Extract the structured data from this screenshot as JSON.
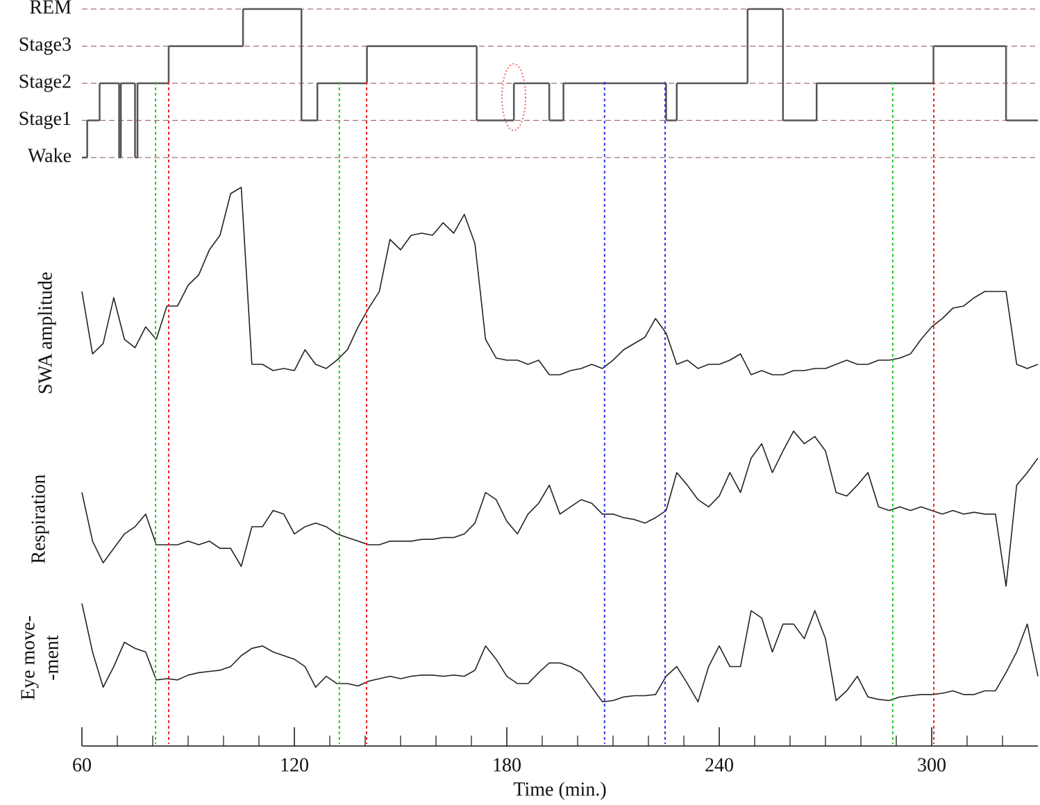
{
  "chart_data": [
    {
      "type": "step",
      "x": [
        60,
        61.5,
        65,
        70.5,
        71,
        75,
        75.7,
        84.5,
        105.5,
        122,
        126.5,
        140.5,
        171.5,
        182,
        192,
        196,
        225,
        228,
        248,
        258,
        267.5,
        300.5,
        321
      ],
      "values": [
        0,
        1,
        2,
        0,
        2,
        0,
        2,
        3,
        4,
        1,
        2,
        3,
        1,
        2,
        1,
        2,
        1,
        2,
        4,
        1,
        2,
        3,
        1
      ],
      "color": "#555555",
      "xlim": [
        60,
        330
      ],
      "ylim": [
        0,
        4
      ],
      "yticks": [
        {
          "value": 0,
          "label": "Wake"
        },
        {
          "value": 1,
          "label": "Stage1"
        },
        {
          "value": 2,
          "label": "Stage2"
        },
        {
          "value": 3,
          "label": "Stage3"
        },
        {
          "value": 4,
          "label": "REM"
        }
      ],
      "grid": true,
      "grid_color": "#a07070"
    },
    {
      "type": "line",
      "x": [
        60,
        63,
        66,
        69,
        72,
        75,
        78,
        81,
        84,
        87,
        90,
        93,
        96,
        99,
        102,
        105,
        108,
        111,
        114,
        117,
        120,
        123,
        126,
        129,
        132,
        135,
        138,
        141,
        144,
        147,
        150,
        153,
        156,
        159,
        162,
        165,
        168,
        171,
        174,
        177,
        180,
        183,
        186,
        189,
        192,
        195,
        198,
        201,
        204,
        207,
        210,
        213,
        216,
        219,
        222,
        225,
        228,
        231,
        234,
        237,
        240,
        243,
        246,
        249,
        252,
        255,
        258,
        261,
        264,
        267,
        270,
        273,
        276,
        279,
        282,
        285,
        288,
        291,
        294,
        297,
        300,
        303,
        306,
        309,
        312,
        315,
        318,
        321,
        324,
        327,
        330
      ],
      "series": [
        {
          "name": "SWA amplitude",
          "color": "#222222",
          "values": [
            45,
            15,
            20,
            42,
            22,
            18,
            28,
            22,
            38,
            38,
            48,
            53,
            65,
            72,
            92,
            95,
            10,
            10,
            7,
            8,
            7,
            17,
            10,
            8,
            12,
            17,
            28,
            37,
            45,
            70,
            65,
            72,
            73,
            72,
            78,
            73,
            82,
            68,
            22,
            13,
            12,
            12,
            10,
            12,
            5,
            5,
            7,
            8,
            10,
            8,
            12,
            17,
            20,
            23,
            32,
            25,
            10,
            12,
            8,
            10,
            10,
            12,
            15,
            5,
            7,
            5,
            5,
            7,
            7,
            8,
            8,
            10,
            12,
            10,
            10,
            12,
            12,
            13,
            15,
            22,
            28,
            32,
            37,
            38,
            42,
            45,
            45,
            45,
            10,
            8,
            10
          ]
        },
        {
          "name": "Respiration",
          "color": "#222222",
          "values": [
            54,
            27,
            15,
            23,
            31,
            35,
            42,
            25,
            25,
            25,
            27,
            25,
            27,
            23,
            23,
            13,
            35,
            35,
            44,
            42,
            31,
            35,
            37,
            35,
            31,
            29,
            27,
            25,
            25,
            27,
            27,
            27,
            28,
            28,
            29,
            29,
            31,
            37,
            54,
            50,
            38,
            31,
            42,
            48,
            58,
            42,
            46,
            50,
            48,
            42,
            42,
            40,
            39,
            37,
            40,
            44,
            65,
            58,
            50,
            46,
            52,
            65,
            54,
            73,
            81,
            65,
            77,
            88,
            81,
            85,
            77,
            54,
            52,
            58,
            65,
            46,
            44,
            46,
            44,
            46,
            44,
            42,
            44,
            42,
            43,
            42,
            42,
            2,
            58,
            65,
            73
          ]
        },
        {
          "name": [
            "Eye move-",
            "-ment"
          ],
          "color": "#222222",
          "values": [
            86,
            46,
            17,
            34,
            54,
            49,
            46,
            23,
            24,
            23,
            27,
            29,
            30,
            31,
            34,
            43,
            49,
            51,
            46,
            43,
            40,
            34,
            17,
            26,
            20,
            20,
            18,
            22,
            24,
            26,
            24,
            26,
            27,
            27,
            26,
            27,
            26,
            31,
            51,
            40,
            26,
            20,
            20,
            29,
            37,
            37,
            34,
            29,
            17,
            5,
            6,
            9,
            10,
            10,
            11,
            26,
            34,
            20,
            5,
            34,
            51,
            34,
            34,
            80,
            74,
            46,
            69,
            69,
            57,
            80,
            57,
            6,
            14,
            26,
            9,
            7,
            6,
            9,
            10,
            11,
            11,
            12,
            14,
            11,
            11,
            14,
            14,
            29,
            46,
            69,
            26
          ]
        }
      ],
      "ylim": [
        0,
        100
      ],
      "xlim": [
        60,
        330
      ],
      "xticks": [
        60,
        120,
        180,
        240,
        300
      ],
      "xminor_ticks": [
        70,
        80,
        90,
        100,
        110,
        130,
        140,
        150,
        160,
        170,
        190,
        200,
        210,
        220,
        230,
        250,
        260,
        270,
        280,
        290,
        310,
        320
      ],
      "xlabel": "Time (min.)",
      "markers": [
        {
          "x": 80.8,
          "color": "#22cc22"
        },
        {
          "x": 132.7,
          "color": "#22cc22"
        },
        {
          "x": 289,
          "color": "#22cc22"
        },
        {
          "x": 84.5,
          "color": "#ee2222"
        },
        {
          "x": 140.4,
          "color": "#ee2222"
        },
        {
          "x": 300.6,
          "color": "#ee2222"
        },
        {
          "x": 207.6,
          "color": "#3333ee"
        },
        {
          "x": 224.7,
          "color": "#3333ee"
        }
      ]
    }
  ]
}
